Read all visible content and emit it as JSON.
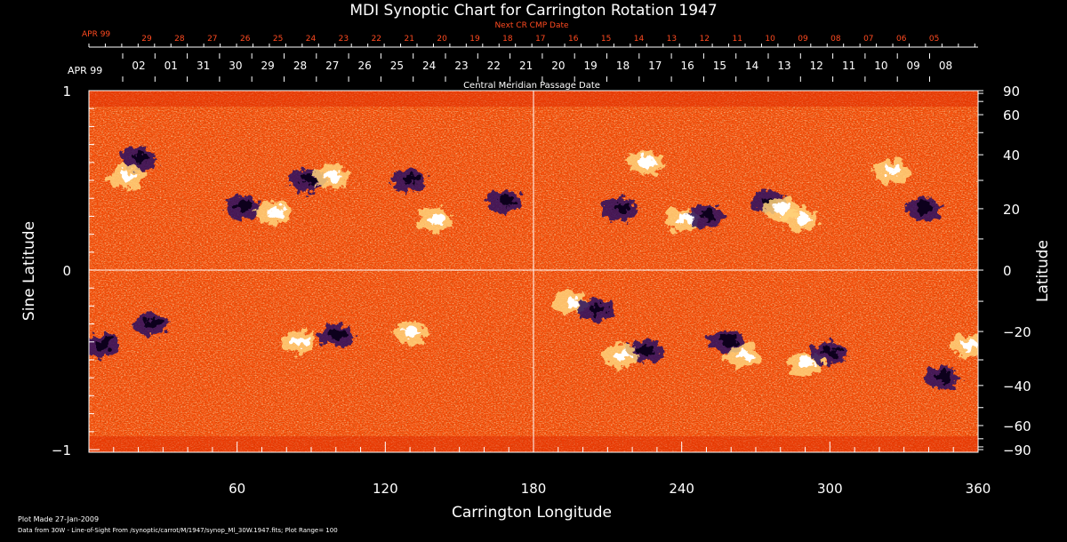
{
  "chart_data": {
    "type": "heatmap",
    "title": "MDI Synoptic Chart for Carrington Rotation 1947",
    "xlabel": "Carrington Longitude",
    "ylabel_left": "Sine Latitude",
    "ylabel_right": "Latitude",
    "xlim": [
      0,
      360
    ],
    "ylim": [
      -1,
      1
    ],
    "x_ticks": [
      60,
      120,
      180,
      240,
      300,
      360
    ],
    "y_left_ticks": [
      {
        "value": 1,
        "label": "1"
      },
      {
        "value": 0,
        "label": "0"
      },
      {
        "value": -1,
        "label": "−1"
      }
    ],
    "y_right_ticks": [
      90,
      60,
      40,
      20,
      0,
      -20,
      -40,
      -60,
      -90
    ],
    "y_right_ticks_labels": [
      "90",
      "60",
      "40",
      "20",
      "0",
      "−20",
      "−40",
      "−60",
      "−90"
    ],
    "central_meridian_label": "Central Meridian Passage Date",
    "next_cr_label": "Next CR CMP Date",
    "month_label": "APR 99",
    "cmp_dates": [
      "02",
      "01",
      "31",
      "30",
      "29",
      "28",
      "27",
      "26",
      "25",
      "24",
      "23",
      "22",
      "21",
      "20",
      "19",
      "18",
      "17",
      "16",
      "15",
      "14",
      "13",
      "12",
      "11",
      "10",
      "09",
      "08"
    ],
    "next_cr_dates": [
      "29",
      "28",
      "27",
      "26",
      "25",
      "24",
      "23",
      "22",
      "21",
      "20",
      "19",
      "18",
      "17",
      "16",
      "15",
      "14",
      "13",
      "12",
      "11",
      "10",
      "09",
      "08",
      "07",
      "06",
      "05"
    ],
    "colorscale": [
      "#000033",
      "#1a1a66",
      "#7a1200",
      "#ff3a00",
      "#ff7a10",
      "#ffe070",
      "#ffffff"
    ],
    "plot_range": 100,
    "active_regions": [
      {
        "lon": 20,
        "sinlat": 0.62,
        "polarity": "neg"
      },
      {
        "lon": 15,
        "sinlat": 0.52,
        "polarity": "pos"
      },
      {
        "lon": 62,
        "sinlat": 0.35,
        "polarity": "neg"
      },
      {
        "lon": 75,
        "sinlat": 0.32,
        "polarity": "pos"
      },
      {
        "lon": 88,
        "sinlat": 0.5,
        "polarity": "neg"
      },
      {
        "lon": 98,
        "sinlat": 0.52,
        "polarity": "pos"
      },
      {
        "lon": 130,
        "sinlat": 0.5,
        "polarity": "neg"
      },
      {
        "lon": 140,
        "sinlat": 0.28,
        "polarity": "pos"
      },
      {
        "lon": 168,
        "sinlat": 0.38,
        "polarity": "neg"
      },
      {
        "lon": 215,
        "sinlat": 0.34,
        "polarity": "neg"
      },
      {
        "lon": 225,
        "sinlat": 0.6,
        "polarity": "pos"
      },
      {
        "lon": 240,
        "sinlat": 0.28,
        "polarity": "pos"
      },
      {
        "lon": 250,
        "sinlat": 0.3,
        "polarity": "neg"
      },
      {
        "lon": 275,
        "sinlat": 0.38,
        "polarity": "neg"
      },
      {
        "lon": 280,
        "sinlat": 0.34,
        "polarity": "pos"
      },
      {
        "lon": 288,
        "sinlat": 0.28,
        "polarity": "pos"
      },
      {
        "lon": 338,
        "sinlat": 0.34,
        "polarity": "neg"
      },
      {
        "lon": 325,
        "sinlat": 0.55,
        "polarity": "pos"
      },
      {
        "lon": 5,
        "sinlat": -0.42,
        "polarity": "neg"
      },
      {
        "lon": 25,
        "sinlat": -0.3,
        "polarity": "neg"
      },
      {
        "lon": 85,
        "sinlat": -0.4,
        "polarity": "pos"
      },
      {
        "lon": 100,
        "sinlat": -0.36,
        "polarity": "neg"
      },
      {
        "lon": 130,
        "sinlat": -0.35,
        "polarity": "pos"
      },
      {
        "lon": 195,
        "sinlat": -0.18,
        "polarity": "pos"
      },
      {
        "lon": 205,
        "sinlat": -0.22,
        "polarity": "neg"
      },
      {
        "lon": 225,
        "sinlat": -0.45,
        "polarity": "neg"
      },
      {
        "lon": 215,
        "sinlat": -0.48,
        "polarity": "pos"
      },
      {
        "lon": 258,
        "sinlat": -0.4,
        "polarity": "neg"
      },
      {
        "lon": 265,
        "sinlat": -0.48,
        "polarity": "pos"
      },
      {
        "lon": 290,
        "sinlat": -0.52,
        "polarity": "pos"
      },
      {
        "lon": 300,
        "sinlat": -0.46,
        "polarity": "neg"
      },
      {
        "lon": 345,
        "sinlat": -0.6,
        "polarity": "neg"
      },
      {
        "lon": 356,
        "sinlat": -0.42,
        "polarity": "pos"
      }
    ]
  },
  "footer": {
    "plot_made": "Plot Made 27-Jan-2009",
    "data_from": "Data from 30W - Line-of-Sight From /synoptic/carrot/M/1947/synop_Ml_30W.1947.fits; Plot Range= 100"
  }
}
